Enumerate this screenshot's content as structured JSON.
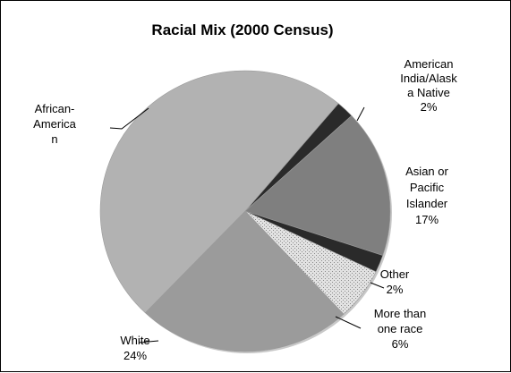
{
  "chart_data": {
    "type": "pie",
    "title": "Racial Mix (2000 Census)",
    "start_angle_degrees": 50,
    "direction": "clockwise",
    "slices": [
      {
        "name": "American India/Alaska Native",
        "label_lines": [
          "American",
          "India/Alask",
          "a Native",
          "2%"
        ],
        "value": 2,
        "color": "#2a2a2a"
      },
      {
        "name": "Asian or Pacific Islander",
        "label_lines": [
          "Asian or",
          "Pacific",
          "Islander",
          "17%"
        ],
        "value": 17,
        "color": "#7f7f7f"
      },
      {
        "name": "Other",
        "label_lines": [
          "Other",
          "2%"
        ],
        "value": 2,
        "color": "#2a2a2a"
      },
      {
        "name": "More than one race",
        "label_lines": [
          "More than",
          "one race",
          "6%"
        ],
        "value": 6,
        "color": "#d8d8d8"
      },
      {
        "name": "White",
        "label_lines": [
          "White",
          "24%"
        ],
        "value": 24,
        "color": "#9b9b9b"
      },
      {
        "name": "African-American",
        "label_lines": [
          "African-",
          "America",
          "n"
        ],
        "value": 49,
        "color": "#b2b2b2"
      }
    ]
  }
}
